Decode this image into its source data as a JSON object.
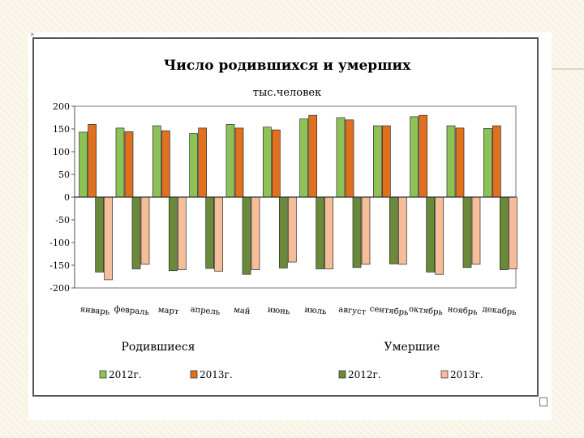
{
  "slide": {
    "bullet": "»"
  },
  "chart_data": {
    "type": "bar",
    "title": "Число родившихся и умерших",
    "subtitle": "тыс.человек",
    "categories": [
      "январь",
      "февраль",
      "март",
      "апрель",
      "май",
      "июнь",
      "июль",
      "август",
      "сентябрь",
      "октябрь",
      "ноябрь",
      "декабрь"
    ],
    "series": [
      {
        "name": "2012г.",
        "group": "Родившиеся",
        "color": "#8dc356",
        "values": [
          143,
          152,
          157,
          140,
          160,
          154,
          172,
          175,
          157,
          177,
          157,
          151
        ]
      },
      {
        "name": "2013г.",
        "group": "Родившиеся",
        "color": "#e0701e",
        "values": [
          160,
          144,
          146,
          152,
          152,
          148,
          180,
          170,
          157,
          180,
          152,
          157
        ]
      },
      {
        "name": "2012г.",
        "group": "Умершие",
        "color": "#6a8a3a",
        "values": [
          -165,
          -158,
          -162,
          -157,
          -170,
          -156,
          -158,
          -155,
          -147,
          -165,
          -155,
          -160
        ]
      },
      {
        "name": "2013г.",
        "group": "Умершие",
        "color": "#f5bd98",
        "values": [
          -182,
          -148,
          -160,
          -163,
          -160,
          -143,
          -158,
          -148,
          -148,
          -170,
          -148,
          -158
        ]
      }
    ],
    "ylim": [
      -200,
      200
    ],
    "yticks": [
      200,
      150,
      100,
      50,
      0,
      -50,
      -100,
      -150,
      -200
    ],
    "grid": false,
    "legend": {
      "groups": [
        "Родившиеся",
        "Умершие"
      ],
      "placement": "bottom"
    }
  }
}
